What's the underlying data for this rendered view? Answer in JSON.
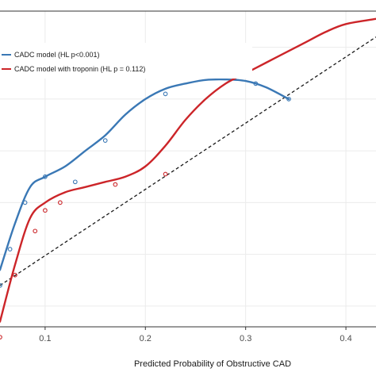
{
  "chart_data": {
    "type": "line",
    "xlabel": "Predicted Probability of Obstructive CAD",
    "ylabel": "",
    "xlim": [
      0.055,
      0.43
    ],
    "ylim": [
      0.36,
      0.97
    ],
    "x_ticks": [
      0.1,
      0.2,
      0.3,
      0.4
    ],
    "x_tick_labels": [
      "0.1",
      "0.2",
      "0.3",
      "0.4"
    ],
    "y_gridlines": [
      0.4,
      0.5,
      0.6,
      0.7,
      0.8,
      0.9
    ],
    "grid": true,
    "legend_position": "top-left",
    "reference_line": {
      "style": "dashed",
      "color": "#1a1a1a",
      "from": [
        0.055,
        0.44
      ],
      "to": [
        0.43,
        0.92
      ]
    },
    "series": [
      {
        "name": "CADC model (HL p<0.001)",
        "color": "#3a78b5",
        "curve": [
          [
            0.055,
            0.47
          ],
          [
            0.07,
            0.56
          ],
          [
            0.085,
            0.63
          ],
          [
            0.1,
            0.65
          ],
          [
            0.12,
            0.67
          ],
          [
            0.14,
            0.7
          ],
          [
            0.16,
            0.73
          ],
          [
            0.18,
            0.77
          ],
          [
            0.2,
            0.8
          ],
          [
            0.22,
            0.82
          ],
          [
            0.24,
            0.83
          ],
          [
            0.26,
            0.837
          ],
          [
            0.28,
            0.838
          ],
          [
            0.3,
            0.835
          ],
          [
            0.32,
            0.823
          ],
          [
            0.343,
            0.8
          ]
        ],
        "points": [
          [
            0.055,
            0.44
          ],
          [
            0.065,
            0.51
          ],
          [
            0.08,
            0.6
          ],
          [
            0.1,
            0.65
          ],
          [
            0.13,
            0.64
          ],
          [
            0.16,
            0.72
          ],
          [
            0.22,
            0.81
          ],
          [
            0.31,
            0.83
          ],
          [
            0.343,
            0.8
          ]
        ]
      },
      {
        "name": "CADC model with troponin (HL p = 0.112)",
        "color": "#cc2529",
        "curve": [
          [
            0.055,
            0.37
          ],
          [
            0.07,
            0.48
          ],
          [
            0.085,
            0.57
          ],
          [
            0.1,
            0.6
          ],
          [
            0.12,
            0.62
          ],
          [
            0.14,
            0.63
          ],
          [
            0.16,
            0.64
          ],
          [
            0.18,
            0.65
          ],
          [
            0.2,
            0.67
          ],
          [
            0.22,
            0.71
          ],
          [
            0.24,
            0.76
          ],
          [
            0.26,
            0.8
          ],
          [
            0.28,
            0.83
          ],
          [
            0.3,
            0.85
          ],
          [
            0.32,
            0.87
          ],
          [
            0.34,
            0.89
          ],
          [
            0.36,
            0.91
          ],
          [
            0.38,
            0.93
          ],
          [
            0.4,
            0.945
          ],
          [
            0.43,
            0.955
          ]
        ],
        "points": [
          [
            0.055,
            0.34
          ],
          [
            0.07,
            0.46
          ],
          [
            0.09,
            0.545
          ],
          [
            0.1,
            0.585
          ],
          [
            0.115,
            0.6
          ],
          [
            0.17,
            0.635
          ],
          [
            0.22,
            0.655
          ]
        ]
      }
    ]
  }
}
